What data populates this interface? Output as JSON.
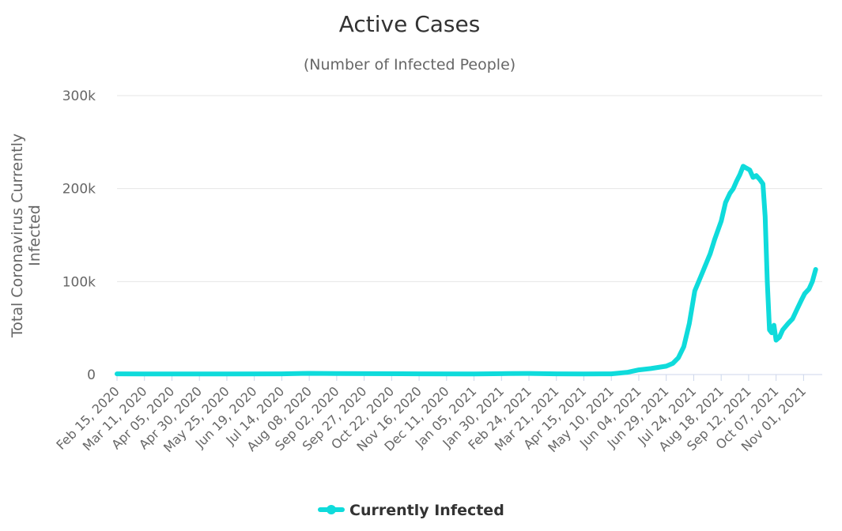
{
  "chart_data": {
    "type": "line",
    "title": "Active Cases",
    "subtitle": "(Number of Infected People)",
    "ylabel_lines": [
      "Total Coronavirus Currently",
      "Infected"
    ],
    "ylim": [
      0,
      300000
    ],
    "yticks": [
      {
        "value": 0,
        "label": "0"
      },
      {
        "value": 100000,
        "label": "100k"
      },
      {
        "value": 200000,
        "label": "200k"
      },
      {
        "value": 300000,
        "label": "300k"
      }
    ],
    "xlim": [
      "2020-02-15",
      "2021-11-18"
    ],
    "xticks": [
      "Feb 15, 2020",
      "Mar 11, 2020",
      "Apr 05, 2020",
      "Apr 30, 2020",
      "May 25, 2020",
      "Jun 19, 2020",
      "Jul 14, 2020",
      "Aug 08, 2020",
      "Sep 02, 2020",
      "Sep 27, 2020",
      "Oct 22, 2020",
      "Nov 16, 2020",
      "Dec 11, 2020",
      "Jan 05, 2021",
      "Jan 30, 2021",
      "Feb 24, 2021",
      "Mar 21, 2021",
      "Apr 15, 2021",
      "May 10, 2021",
      "Jun 04, 2021",
      "Jun 29, 2021",
      "Jul 24, 2021",
      "Aug 18, 2021",
      "Sep 12, 2021",
      "Oct 07, 2021",
      "Nov 01, 2021"
    ],
    "legend": "bottom-center",
    "grid": true,
    "series": [
      {
        "name": "Currently Infected",
        "color": "#0fdbdb",
        "points": [
          [
            "2020-02-15",
            800
          ],
          [
            "2020-03-11",
            600
          ],
          [
            "2020-05-25",
            700
          ],
          [
            "2020-07-14",
            800
          ],
          [
            "2020-08-08",
            1300
          ],
          [
            "2020-09-02",
            1000
          ],
          [
            "2020-11-16",
            800
          ],
          [
            "2021-01-05",
            700
          ],
          [
            "2021-02-05",
            1000
          ],
          [
            "2021-02-24",
            1200
          ],
          [
            "2021-03-21",
            800
          ],
          [
            "2021-04-15",
            700
          ],
          [
            "2021-05-10",
            800
          ],
          [
            "2021-05-25",
            2500
          ],
          [
            "2021-06-04",
            5000
          ],
          [
            "2021-06-15",
            6500
          ],
          [
            "2021-06-29",
            9000
          ],
          [
            "2021-07-05",
            12000
          ],
          [
            "2021-07-10",
            18000
          ],
          [
            "2021-07-15",
            30000
          ],
          [
            "2021-07-20",
            55000
          ],
          [
            "2021-07-25",
            90000
          ],
          [
            "2021-08-01",
            110000
          ],
          [
            "2021-08-08",
            130000
          ],
          [
            "2021-08-12",
            145000
          ],
          [
            "2021-08-18",
            165000
          ],
          [
            "2021-08-22",
            185000
          ],
          [
            "2021-08-26",
            195000
          ],
          [
            "2021-08-29",
            200000
          ],
          [
            "2021-09-01",
            208000
          ],
          [
            "2021-09-04",
            215000
          ],
          [
            "2021-09-07",
            224000
          ],
          [
            "2021-09-10",
            222000
          ],
          [
            "2021-09-13",
            220000
          ],
          [
            "2021-09-16",
            212000
          ],
          [
            "2021-09-19",
            214000
          ],
          [
            "2021-09-22",
            210000
          ],
          [
            "2021-09-25",
            205000
          ],
          [
            "2021-09-27",
            170000
          ],
          [
            "2021-09-29",
            100000
          ],
          [
            "2021-10-01",
            48000
          ],
          [
            "2021-10-03",
            45000
          ],
          [
            "2021-10-05",
            53000
          ],
          [
            "2021-10-07",
            37000
          ],
          [
            "2021-10-10",
            40000
          ],
          [
            "2021-10-13",
            48000
          ],
          [
            "2021-10-18",
            55000
          ],
          [
            "2021-10-22",
            60000
          ],
          [
            "2021-10-26",
            70000
          ],
          [
            "2021-10-30",
            80000
          ],
          [
            "2021-11-02",
            87000
          ],
          [
            "2021-11-06",
            92000
          ],
          [
            "2021-11-09",
            100000
          ],
          [
            "2021-11-12",
            113000
          ]
        ]
      }
    ]
  }
}
